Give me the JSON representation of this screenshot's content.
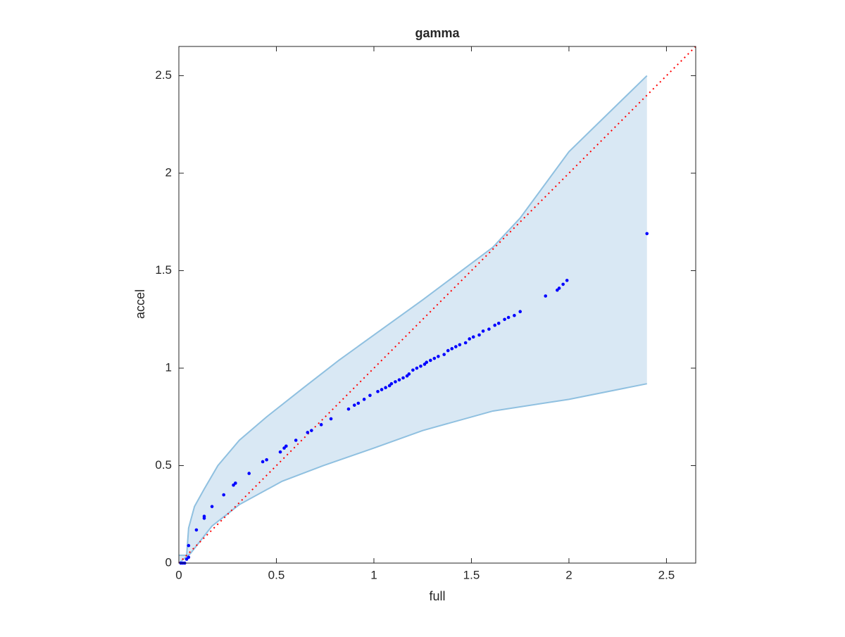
{
  "chart_data": {
    "type": "scatter",
    "title": "gamma",
    "x_label": "full",
    "y_label": "accel",
    "xlim": [
      0,
      2.65
    ],
    "ylim": [
      0,
      2.65
    ],
    "xticks": [
      0,
      0.5,
      1,
      1.5,
      2,
      2.5
    ],
    "yticks": [
      0,
      0.5,
      1,
      1.5,
      2,
      2.5
    ],
    "grid": false,
    "color": "#0000ff",
    "x": [
      0.01,
      0.02,
      0.03,
      0.04,
      0.05,
      0.05,
      0.09,
      0.13,
      0.13,
      0.17,
      0.23,
      0.28,
      0.29,
      0.36,
      0.43,
      0.45,
      0.52,
      0.54,
      0.55,
      0.6,
      0.66,
      0.68,
      0.73,
      0.78,
      0.87,
      0.9,
      0.92,
      0.95,
      0.98,
      1.02,
      1.04,
      1.06,
      1.08,
      1.09,
      1.11,
      1.13,
      1.15,
      1.17,
      1.18,
      1.2,
      1.22,
      1.24,
      1.26,
      1.27,
      1.29,
      1.31,
      1.33,
      1.36,
      1.38,
      1.4,
      1.42,
      1.44,
      1.47,
      1.49,
      1.51,
      1.54,
      1.56,
      1.59,
      1.62,
      1.64,
      1.67,
      1.69,
      1.72,
      1.75,
      1.88,
      1.94,
      1.95,
      1.97,
      1.99,
      2.4
    ],
    "values": [
      0,
      0,
      0,
      0.02,
      0.03,
      0.09,
      0.17,
      0.23,
      0.24,
      0.29,
      0.35,
      0.4,
      0.41,
      0.46,
      0.52,
      0.53,
      0.57,
      0.59,
      0.6,
      0.63,
      0.67,
      0.68,
      0.71,
      0.74,
      0.79,
      0.81,
      0.82,
      0.84,
      0.86,
      0.88,
      0.89,
      0.9,
      0.91,
      0.92,
      0.93,
      0.94,
      0.95,
      0.96,
      0.97,
      0.99,
      1.0,
      1.01,
      1.02,
      1.03,
      1.04,
      1.05,
      1.06,
      1.07,
      1.09,
      1.1,
      1.11,
      1.12,
      1.13,
      1.15,
      1.16,
      1.17,
      1.19,
      1.2,
      1.22,
      1.23,
      1.25,
      1.26,
      1.27,
      1.29,
      1.37,
      1.4,
      1.41,
      1.43,
      1.45,
      1.69
    ],
    "band": {
      "fill": "#d9e8f4",
      "line_color": "#8fc0e0",
      "upper": {
        "x": [
          0,
          0.04,
          0.05,
          0.08,
          0.13,
          0.2,
          0.31,
          0.45,
          0.64,
          0.82,
          1,
          1.25,
          1.61,
          1.75,
          2,
          2.4
        ],
        "values": [
          0.04,
          0.04,
          0.18,
          0.29,
          0.38,
          0.5,
          0.63,
          0.75,
          0.9,
          1.04,
          1.17,
          1.35,
          1.62,
          1.77,
          2.11,
          2.5
        ]
      },
      "lower": {
        "x": [
          0,
          0.06,
          0.17,
          0.31,
          0.53,
          0.74,
          1,
          1.25,
          1.61,
          2,
          2.4
        ],
        "values": [
          0,
          0.05,
          0.19,
          0.3,
          0.42,
          0.5,
          0.59,
          0.68,
          0.78,
          0.84,
          0.92
        ]
      }
    },
    "reference": {
      "x": [
        0,
        2.65
      ],
      "values": [
        0,
        2.65
      ],
      "color": "#ff0000"
    }
  }
}
